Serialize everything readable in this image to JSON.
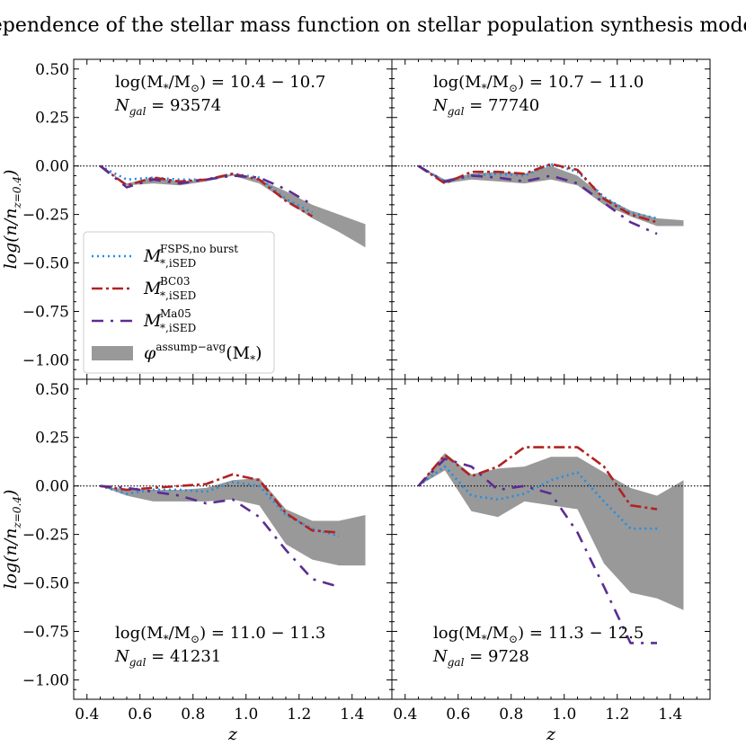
{
  "title": "Dependence of the stellar mass function on stellar population synthesis models",
  "xlabel": "z",
  "ylabel_main": "log(n/n",
  "ylabel_sub": "z=0.4",
  "ylabel_close": ")",
  "xlim": [
    0.35,
    1.55
  ],
  "ylim": [
    -1.1,
    0.55
  ],
  "x_ticks": [
    0.4,
    0.6,
    0.8,
    1.0,
    1.2,
    1.4
  ],
  "x_tick_labels": [
    "0.4",
    "0.6",
    "0.8",
    "1.0",
    "1.2",
    "1.4"
  ],
  "y_ticks": [
    0.5,
    0.25,
    0.0,
    -0.25,
    -0.5,
    -0.75,
    -1.0
  ],
  "y_tick_labels": [
    "0.50",
    "0.25",
    "0.00",
    "−0.25",
    "−0.50",
    "−0.75",
    "−1.00"
  ],
  "colors": {
    "fsps": "#1f8fe8",
    "bc03": "#b22222",
    "ma05": "#5b2d91",
    "band": "#999999",
    "ref": "#000000"
  },
  "legend": {
    "placement": "panel-1 lower-left",
    "entries": [
      {
        "key": "fsps",
        "label_main": "M",
        "label_sup": "FSPS,no burst",
        "label_sub": "*,iSED"
      },
      {
        "key": "bc03",
        "label_main": "M",
        "label_sup": "BC03",
        "label_sub": "*,iSED"
      },
      {
        "key": "ma05",
        "label_main": "M",
        "label_sup": "Ma05",
        "label_sub": "*,iSED"
      },
      {
        "key": "band",
        "label_main": "φ",
        "label_sup": "assump−avg",
        "label_tail": "(M",
        "label_sub": "*",
        "label_close": ")"
      }
    ]
  },
  "chart_data": [
    {
      "type": "line",
      "panel": "top-left",
      "mass_range": "log(M*/M⊙) = 10.4 − 10.7",
      "ann_line1_pre": "log(M",
      "ann_line1_sub": "*",
      "ann_line1_mid": "/M",
      "ann_line1_sub2": "⊙",
      "ann_line1_post": ") = 10.4 − 10.7",
      "ann_line2_pre": "N",
      "ann_line2_sub": "gal",
      "ann_line2_post": " = 93574",
      "annotation_position": "top",
      "x": [
        0.45,
        0.55,
        0.65,
        0.75,
        0.85,
        0.95,
        1.05,
        1.15,
        1.25,
        1.35,
        1.45
      ],
      "band_upper": [
        0.0,
        -0.09,
        -0.06,
        -0.08,
        -0.07,
        -0.04,
        -0.07,
        -0.13,
        -0.2,
        -0.25,
        -0.3
      ],
      "band_lower": [
        0.0,
        -0.1,
        -0.09,
        -0.1,
        -0.08,
        -0.05,
        -0.09,
        -0.18,
        -0.27,
        -0.34,
        -0.42
      ],
      "series": [
        {
          "key": "fsps",
          "x": [
            0.45,
            0.55,
            0.65,
            0.75,
            0.85,
            0.95,
            1.05,
            1.15,
            1.25
          ],
          "values": [
            0.0,
            -0.07,
            -0.06,
            -0.07,
            -0.07,
            -0.04,
            -0.06,
            -0.17,
            -0.24
          ]
        },
        {
          "key": "bc03",
          "x": [
            0.45,
            0.55,
            0.65,
            0.75,
            0.85,
            0.95,
            1.05,
            1.15,
            1.25
          ],
          "values": [
            0.0,
            -0.1,
            -0.06,
            -0.08,
            -0.07,
            -0.04,
            -0.07,
            -0.18,
            -0.26
          ]
        },
        {
          "key": "ma05",
          "x": [
            0.45,
            0.55,
            0.65,
            0.75,
            0.85,
            0.95,
            1.05,
            1.15,
            1.25
          ],
          "values": [
            0.0,
            -0.11,
            -0.07,
            -0.09,
            -0.07,
            -0.05,
            -0.06,
            -0.12,
            -0.2
          ]
        }
      ]
    },
    {
      "type": "line",
      "panel": "top-right",
      "mass_range": "log(M*/M⊙) = 10.7 − 11.0",
      "ann_line1_pre": "log(M",
      "ann_line1_sub": "*",
      "ann_line1_mid": "/M",
      "ann_line1_sub2": "⊙",
      "ann_line1_post": ") = 10.7 − 11.0",
      "ann_line2_pre": "N",
      "ann_line2_sub": "gal",
      "ann_line2_post": " = 77740",
      "annotation_position": "top",
      "x": [
        0.45,
        0.55,
        0.65,
        0.75,
        0.85,
        0.95,
        1.05,
        1.15,
        1.25,
        1.35,
        1.45
      ],
      "band_upper": [
        0.0,
        -0.07,
        -0.04,
        -0.03,
        -0.04,
        0.0,
        -0.05,
        -0.16,
        -0.23,
        -0.27,
        -0.28
      ],
      "band_lower": [
        0.0,
        -0.09,
        -0.07,
        -0.08,
        -0.09,
        -0.07,
        -0.1,
        -0.2,
        -0.26,
        -0.31,
        -0.31
      ],
      "series": [
        {
          "key": "fsps",
          "x": [
            0.45,
            0.55,
            0.65,
            0.75,
            0.85,
            0.95,
            1.05,
            1.15,
            1.25,
            1.35
          ],
          "values": [
            0.0,
            -0.08,
            -0.05,
            -0.04,
            -0.05,
            0.01,
            -0.03,
            -0.16,
            -0.24,
            -0.27
          ]
        },
        {
          "key": "bc03",
          "x": [
            0.45,
            0.55,
            0.65,
            0.75,
            0.85,
            0.95,
            1.05,
            1.15,
            1.25,
            1.35
          ],
          "values": [
            0.0,
            -0.09,
            -0.03,
            -0.03,
            -0.04,
            0.01,
            -0.02,
            -0.17,
            -0.25,
            -0.29
          ]
        },
        {
          "key": "ma05",
          "x": [
            0.45,
            0.55,
            0.65,
            0.75,
            0.85,
            0.95,
            1.05,
            1.15,
            1.25,
            1.35
          ],
          "values": [
            0.0,
            -0.08,
            -0.05,
            -0.06,
            -0.08,
            -0.05,
            -0.09,
            -0.19,
            -0.29,
            -0.35
          ]
        }
      ]
    },
    {
      "type": "line",
      "panel": "bottom-left",
      "mass_range": "log(M*/M⊙) = 11.0 − 11.3",
      "ann_line1_pre": "log(M",
      "ann_line1_sub": "*",
      "ann_line1_mid": "/M",
      "ann_line1_sub2": "⊙",
      "ann_line1_post": ") = 11.0 − 11.3",
      "ann_line2_pre": "N",
      "ann_line2_sub": "gal",
      "ann_line2_post": " = 41231",
      "annotation_position": "bottom",
      "x": [
        0.45,
        0.55,
        0.65,
        0.75,
        0.85,
        0.95,
        1.05,
        1.15,
        1.25,
        1.35,
        1.45
      ],
      "band_upper": [
        0.0,
        -0.02,
        -0.02,
        -0.02,
        -0.01,
        0.03,
        0.04,
        -0.12,
        -0.18,
        -0.18,
        -0.15
      ],
      "band_lower": [
        0.0,
        -0.05,
        -0.08,
        -0.08,
        -0.08,
        -0.07,
        -0.1,
        -0.3,
        -0.38,
        -0.41,
        -0.41
      ],
      "series": [
        {
          "key": "fsps",
          "x": [
            0.45,
            0.55,
            0.65,
            0.75,
            0.85,
            0.95,
            1.05,
            1.15,
            1.25,
            1.35
          ],
          "values": [
            0.0,
            -0.04,
            -0.02,
            -0.02,
            -0.03,
            0.02,
            0.0,
            -0.15,
            -0.22,
            -0.26
          ]
        },
        {
          "key": "bc03",
          "x": [
            0.45,
            0.55,
            0.65,
            0.75,
            0.85,
            0.95,
            1.05,
            1.15,
            1.25,
            1.35
          ],
          "values": [
            0.0,
            -0.02,
            -0.01,
            0.0,
            0.01,
            0.06,
            0.03,
            -0.14,
            -0.23,
            -0.24
          ]
        },
        {
          "key": "ma05",
          "x": [
            0.45,
            0.55,
            0.65,
            0.75,
            0.85,
            0.95,
            1.05,
            1.15,
            1.25,
            1.35
          ],
          "values": [
            0.0,
            -0.01,
            -0.03,
            -0.05,
            -0.09,
            -0.07,
            -0.16,
            -0.33,
            -0.48,
            -0.52
          ]
        }
      ]
    },
    {
      "type": "line",
      "panel": "bottom-right",
      "mass_range": "log(M*/M⊙) = 11.3 − 12.5",
      "ann_line1_pre": "log(M",
      "ann_line1_sub": "*",
      "ann_line1_mid": "/M",
      "ann_line1_sub2": "⊙",
      "ann_line1_post": ") = 11.3 − 12.5",
      "ann_line2_pre": "N",
      "ann_line2_sub": "gal",
      "ann_line2_post": " = 9728",
      "annotation_position": "bottom",
      "x": [
        0.45,
        0.55,
        0.65,
        0.75,
        0.85,
        0.95,
        1.05,
        1.15,
        1.25,
        1.35,
        1.45
      ],
      "band_upper": [
        0.0,
        0.17,
        0.06,
        0.09,
        0.1,
        0.15,
        0.15,
        0.07,
        -0.01,
        -0.05,
        0.03
      ],
      "band_lower": [
        0.0,
        0.08,
        -0.13,
        -0.16,
        -0.08,
        -0.1,
        -0.12,
        -0.4,
        -0.55,
        -0.58,
        -0.64
      ],
      "series": [
        {
          "key": "fsps",
          "x": [
            0.45,
            0.55,
            0.65,
            0.75,
            0.85,
            0.95,
            1.05,
            1.15,
            1.25,
            1.35
          ],
          "values": [
            0.0,
            0.1,
            -0.05,
            -0.07,
            -0.04,
            0.03,
            0.07,
            -0.08,
            -0.22,
            -0.22
          ]
        },
        {
          "key": "bc03",
          "x": [
            0.45,
            0.55,
            0.65,
            0.75,
            0.85,
            0.95,
            1.05,
            1.15,
            1.25,
            1.35
          ],
          "values": [
            0.0,
            0.16,
            0.05,
            0.1,
            0.2,
            0.2,
            0.2,
            0.1,
            -0.1,
            -0.12
          ]
        },
        {
          "key": "ma05",
          "x": [
            0.45,
            0.55,
            0.65,
            0.75,
            0.85,
            0.95,
            1.05,
            1.15,
            1.25,
            1.35
          ],
          "values": [
            0.0,
            0.14,
            0.1,
            -0.02,
            0.0,
            -0.04,
            -0.24,
            -0.52,
            -0.81,
            -0.81
          ]
        }
      ]
    }
  ]
}
